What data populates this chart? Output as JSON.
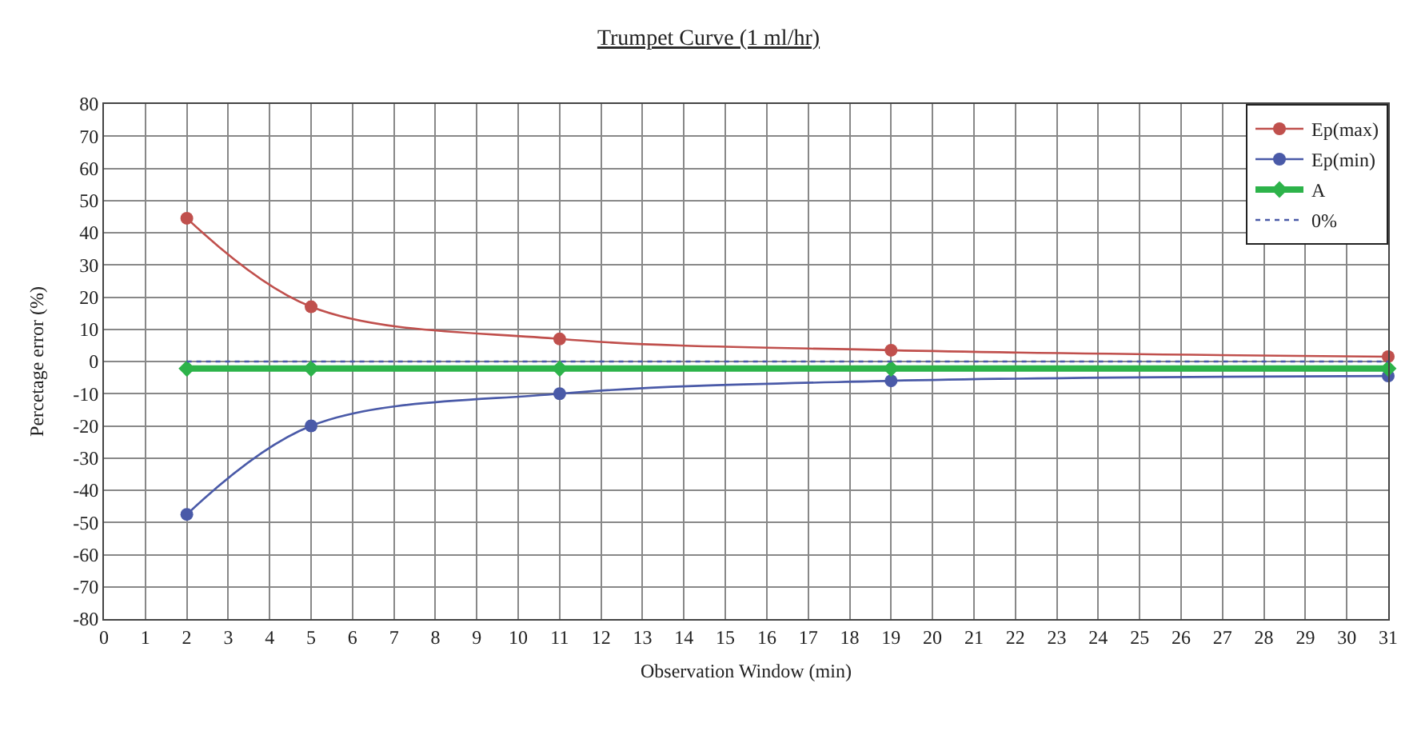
{
  "chart_data": {
    "type": "line",
    "title": "Trumpet Curve (1 ml/hr)",
    "xlabel": "Observation Window (min)",
    "ylabel": "Percetage error (%)",
    "xlim": [
      0,
      31
    ],
    "xticks": [
      0,
      1,
      2,
      3,
      4,
      5,
      6,
      7,
      8,
      9,
      10,
      11,
      12,
      13,
      14,
      15,
      16,
      17,
      18,
      19,
      20,
      21,
      22,
      23,
      24,
      25,
      26,
      27,
      28,
      29,
      30,
      31
    ],
    "ylim": [
      -80,
      80
    ],
    "yticks": [
      -80,
      -70,
      -60,
      -50,
      -40,
      -30,
      -20,
      -10,
      0,
      10,
      20,
      30,
      40,
      50,
      60,
      70,
      80
    ],
    "grid": true,
    "legend": "top right",
    "marker": "circle",
    "line_style": "solid",
    "series": [
      {
        "name": "Ep(max)",
        "color": "#c0504d",
        "x": [
          2,
          5,
          11,
          19,
          31
        ],
        "values": [
          44.5,
          17,
          7,
          3.5,
          1.5
        ]
      },
      {
        "name": "Ep(min)",
        "color": "#4a5aa8",
        "x": [
          2,
          5,
          11,
          19,
          31
        ],
        "values": [
          -47.5,
          -20,
          -10,
          -6,
          -4.5
        ]
      },
      {
        "name": "A",
        "color": "#2db34a",
        "marker": "diamond",
        "x": [
          2,
          5,
          11,
          19,
          31
        ],
        "values": [
          -2.2,
          -2.2,
          -2.2,
          -2.2,
          -2.2
        ]
      },
      {
        "name": "0%",
        "color": "#4a5aa8",
        "marker": "none",
        "line_style": "dotted",
        "x": [
          2,
          31
        ],
        "values": [
          0,
          0
        ]
      }
    ]
  }
}
